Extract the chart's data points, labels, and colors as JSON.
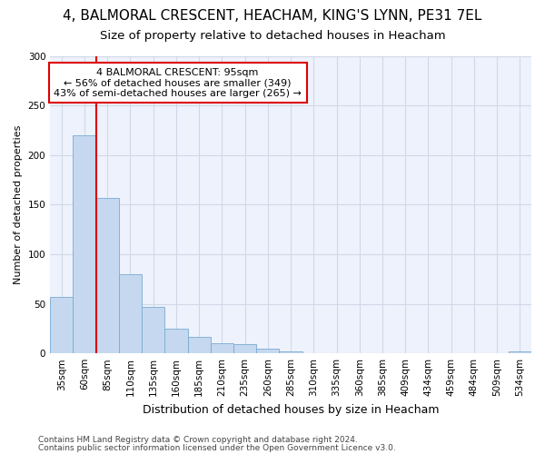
{
  "title1": "4, BALMORAL CRESCENT, HEACHAM, KING'S LYNN, PE31 7EL",
  "title2": "Size of property relative to detached houses in Heacham",
  "xlabel": "Distribution of detached houses by size in Heacham",
  "ylabel": "Number of detached properties",
  "footnote1": "Contains HM Land Registry data © Crown copyright and database right 2024.",
  "footnote2": "Contains public sector information licensed under the Open Government Licence v3.0.",
  "categories": [
    "35sqm",
    "60sqm",
    "85sqm",
    "110sqm",
    "135sqm",
    "160sqm",
    "185sqm",
    "210sqm",
    "235sqm",
    "260sqm",
    "285sqm",
    "310sqm",
    "335sqm",
    "360sqm",
    "385sqm",
    "409sqm",
    "434sqm",
    "459sqm",
    "484sqm",
    "509sqm",
    "534sqm"
  ],
  "values": [
    57,
    220,
    157,
    80,
    47,
    25,
    17,
    10,
    9,
    5,
    2,
    0,
    0,
    0,
    0,
    0,
    0,
    0,
    0,
    0,
    2
  ],
  "bar_color": "#c5d8f0",
  "bar_edgecolor": "#7aaad0",
  "vline_color": "#dd0000",
  "box_edgecolor": "#dd0000",
  "annotation_label": "4 BALMORAL CRESCENT: 95sqm",
  "annotation_line1": "← 56% of detached houses are smaller (349)",
  "annotation_line2": "43% of semi-detached houses are larger (265) →",
  "ylim": [
    0,
    300
  ],
  "yticks": [
    0,
    50,
    100,
    150,
    200,
    250,
    300
  ],
  "bg_color": "#eef2fc",
  "grid_color": "#d0d8e8",
  "title1_fontsize": 11,
  "title2_fontsize": 9.5,
  "ylabel_fontsize": 8,
  "xlabel_fontsize": 9,
  "tick_fontsize": 7.5,
  "footnote_fontsize": 6.5
}
